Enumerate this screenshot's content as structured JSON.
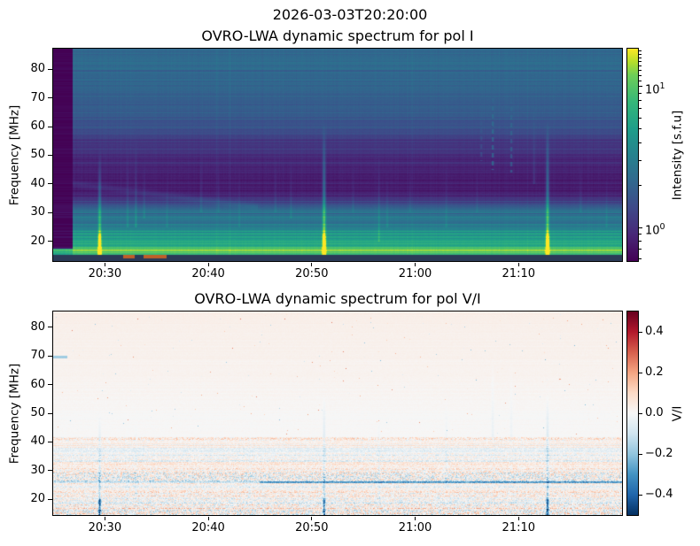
{
  "figure": {
    "title": "2026-03-03T20:20:00"
  },
  "chart_data": [
    {
      "type": "heatmap",
      "subtype": "radio_dynamic_spectrum",
      "title": "OVRO-LWA dynamic spectrum for pol I",
      "ylabel": "Frequency [MHz]",
      "x_axis": {
        "start_label": "20:25",
        "end_label": "21:20",
        "start_min": 25.0,
        "end_min": 80.0,
        "ticks": [
          {
            "label": "20:30",
            "min": 30
          },
          {
            "label": "20:40",
            "min": 40
          },
          {
            "label": "20:50",
            "min": 50
          },
          {
            "label": "21:00",
            "min": 60
          },
          {
            "label": "21:10",
            "min": 70
          }
        ]
      },
      "y_axis": {
        "min_mhz": 13.2,
        "max_mhz": 87.1,
        "ticks": [
          20,
          30,
          40,
          50,
          60,
          70,
          80
        ]
      },
      "colorbar": {
        "label": "Intensity [s.f.u]",
        "cmap": "viridis",
        "scale": "log",
        "vmin": 0.58,
        "vmax": 18.6,
        "major_ticks": [
          {
            "label": "10^1",
            "value": 10
          },
          {
            "label": "10^0",
            "value": 1
          }
        ],
        "minor_tick_values": [
          0.6,
          0.7,
          0.8,
          0.9,
          2,
          3,
          4,
          5,
          6,
          7,
          8,
          9,
          11,
          12,
          13,
          14,
          15,
          16,
          17,
          18
        ]
      },
      "background_spectrum_sfu": [
        [
          87,
          2.3
        ],
        [
          80,
          2.2
        ],
        [
          72,
          2.0
        ],
        [
          65,
          1.75
        ],
        [
          60,
          1.55
        ],
        [
          55,
          1.15
        ],
        [
          50,
          0.95
        ],
        [
          46,
          0.85
        ],
        [
          42,
          0.78
        ],
        [
          38,
          0.78
        ],
        [
          35,
          0.95
        ],
        [
          33.5,
          1.25
        ],
        [
          32,
          1.5
        ],
        [
          30.5,
          2.3
        ],
        [
          29.5,
          2.0
        ],
        [
          28.5,
          2.5
        ],
        [
          27.5,
          3.1
        ],
        [
          26.5,
          2.4
        ],
        [
          25.5,
          3.6
        ],
        [
          24.5,
          3.0
        ],
        [
          23.5,
          4.2
        ],
        [
          22.5,
          4.9
        ],
        [
          21.5,
          4.3
        ],
        [
          20.5,
          5.6
        ],
        [
          19.8,
          7.0
        ],
        [
          19.0,
          5.8
        ],
        [
          18.3,
          6.3
        ],
        [
          17.6,
          8.0
        ],
        [
          17.0,
          13.5
        ],
        [
          16.4,
          11.0
        ],
        [
          15.9,
          8.5
        ],
        [
          15.4,
          7.5
        ]
      ],
      "radio_bursts": [
        {
          "time": "20:29.5",
          "t": 29.5,
          "f_lo": 13.2,
          "f_hi": 52,
          "amp": 3.5,
          "sig": 0.13,
          "core": true
        },
        {
          "time": "20:51.2",
          "t": 51.2,
          "f_lo": 13.2,
          "f_hi": 62,
          "amp": 4.5,
          "sig": 0.13,
          "core": true
        },
        {
          "time": "21:12.8",
          "t": 72.8,
          "f_lo": 13.2,
          "f_hi": 63,
          "amp": 4.5,
          "sig": 0.13,
          "core": true
        }
      ],
      "weak_streaks": [
        {
          "t": 32.2,
          "f_lo": 25,
          "f_hi": 56,
          "amp": 0.5
        },
        {
          "t": 33.0,
          "f_lo": 25,
          "f_hi": 58,
          "amp": 0.7
        },
        {
          "t": 33.8,
          "f_lo": 28,
          "f_hi": 50,
          "amp": 0.4
        },
        {
          "t": 36.0,
          "f_lo": 25,
          "f_hi": 45,
          "amp": 0.3
        },
        {
          "t": 39.3,
          "f_lo": 30,
          "f_hi": 55,
          "amp": 0.35
        },
        {
          "t": 41.0,
          "f_lo": 30,
          "f_hi": 50,
          "amp": 0.25
        },
        {
          "t": 43.0,
          "f_lo": 25,
          "f_hi": 50,
          "amp": 0.3
        },
        {
          "t": 46.5,
          "f_lo": 30,
          "f_hi": 52,
          "amp": 0.3
        },
        {
          "t": 48.0,
          "f_lo": 28,
          "f_hi": 52,
          "amp": 0.35
        },
        {
          "t": 54.0,
          "f_lo": 30,
          "f_hi": 50,
          "amp": 0.25
        },
        {
          "t": 56.5,
          "f_lo": 20,
          "f_hi": 55,
          "amp": 0.6
        },
        {
          "t": 57.3,
          "f_lo": 25,
          "f_hi": 45,
          "amp": 0.35
        },
        {
          "t": 59.5,
          "f_lo": 30,
          "f_hi": 48,
          "amp": 0.25
        },
        {
          "t": 63.0,
          "f_lo": 25,
          "f_hi": 50,
          "amp": 0.3
        },
        {
          "t": 66.0,
          "f_lo": 30,
          "f_hi": 50,
          "amp": 0.25
        },
        {
          "t": 71.5,
          "f_lo": 40,
          "f_hi": 70,
          "amp": 0.4
        },
        {
          "t": 76.0,
          "f_lo": 30,
          "f_hi": 50,
          "amp": 0.3
        },
        {
          "t": 78.5,
          "f_lo": 25,
          "f_hi": 45,
          "amp": 0.3
        }
      ],
      "dotted_streaks": [
        {
          "t": 67.5,
          "f_lo": 45,
          "f_hi": 73,
          "amp": 1.5
        },
        {
          "t": 69.3,
          "f_lo": 44,
          "f_hi": 72,
          "amp": 1.0
        },
        {
          "t": 66.4,
          "f_lo": 48,
          "f_hi": 66,
          "amp": 0.5
        }
      ],
      "drift_feature": {
        "t_start": 26.5,
        "t_end": 46,
        "f_start": 40,
        "drift_mhz_per_min": -0.45,
        "amp": 0.22
      },
      "data_gap_min": [
        25.0,
        26.9
      ],
      "flagged_band_below_mhz": 15.35,
      "flagged_strip_color": "#2b3a57",
      "flagged_rfi_color": "#c05f28",
      "flagged_rfi_segments_min": [
        [
          31.8,
          32.9
        ],
        [
          33.7,
          36.0
        ]
      ],
      "bright_lines_mhz": [
        47.3,
        33.8
      ],
      "dark_lines_mhz": [
        84.8,
        79.5,
        62,
        41.3
      ],
      "noise": {
        "row_sigma_hi": 0.03,
        "row_sigma_lo": 0.06,
        "col_sigma": 0.009,
        "pixel_sigma": 0.025,
        "seed": 11
      }
    },
    {
      "type": "heatmap",
      "subtype": "radio_dynamic_spectrum",
      "title": "OVRO-LWA dynamic spectrum for pol V/I",
      "ylabel": "Frequency [MHz]",
      "x_axis": {
        "start_label": "20:25",
        "end_label": "21:20",
        "start_min": 25.0,
        "end_min": 80.0,
        "ticks": [
          {
            "label": "20:30",
            "min": 30
          },
          {
            "label": "20:40",
            "min": 40
          },
          {
            "label": "20:50",
            "min": 50
          },
          {
            "label": "21:00",
            "min": 60
          },
          {
            "label": "21:10",
            "min": 70
          }
        ]
      },
      "y_axis": {
        "min_mhz": 14.5,
        "max_mhz": 85.5,
        "ticks": [
          20,
          30,
          40,
          50,
          60,
          70,
          80
        ]
      },
      "colorbar": {
        "label": "V/I",
        "cmap": "RdBu_r",
        "scale": "linear",
        "vmin": -0.5,
        "vmax": 0.5,
        "major_ticks": [
          {
            "label": "0.4",
            "value": 0.4
          },
          {
            "label": "0.2",
            "value": 0.2
          },
          {
            "label": "0.0",
            "value": 0.0
          },
          {
            "label": "−0.2",
            "value": -0.2
          },
          {
            "label": "−0.4",
            "value": -0.4
          }
        ]
      },
      "background_tint": {
        "f_ref": 50,
        "tint_at_85": 0.028,
        "tint_below": 0.002
      },
      "noise_bands": [
        {
          "f1": 40.3,
          "f2": 41.6,
          "amp": 0.1,
          "bias": 0.03
        },
        {
          "f1": 38.5,
          "f2": 40.3,
          "amp": 0.04,
          "bias": 0.0
        },
        {
          "f1": 36.2,
          "f2": 38.5,
          "amp": 0.05,
          "bias": -0.01
        },
        {
          "f1": 33.0,
          "f2": 36.2,
          "amp": 0.07,
          "bias": -0.02
        },
        {
          "f1": 31.0,
          "f2": 33.0,
          "amp": 0.06,
          "bias": 0.02
        },
        {
          "f1": 29.3,
          "f2": 31.0,
          "amp": 0.1,
          "bias": 0.03
        },
        {
          "f1": 26.3,
          "f2": 29.3,
          "amp": 0.16,
          "bias": -0.04
        },
        {
          "f1": 25.6,
          "f2": 26.3,
          "amp": 0.08,
          "bias": -0.1,
          "bias_right": -0.28,
          "t_split": 45
        },
        {
          "f1": 23.0,
          "f2": 25.6,
          "amp": 0.08,
          "bias": -0.01
        },
        {
          "f1": 21.0,
          "f2": 23.0,
          "amp": 0.1,
          "bias": 0.03
        },
        {
          "f1": 18.5,
          "f2": 21.0,
          "amp": 0.11,
          "bias": -0.02
        },
        {
          "f1": 16.5,
          "f2": 18.5,
          "amp": 0.13,
          "bias": 0.01
        },
        {
          "f1": 14.5,
          "f2": 16.5,
          "amp": 0.17,
          "bias": -0.03
        }
      ],
      "circular_pol_streaks": [
        {
          "t": 29.5,
          "f_lo": 14.5,
          "f_hi": 50,
          "amp": -0.2,
          "core": -0.22
        },
        {
          "t": 32.2,
          "f_lo": 20,
          "f_hi": 45,
          "amp": -0.05
        },
        {
          "t": 33.0,
          "f_lo": 20,
          "f_hi": 48,
          "amp": -0.07
        },
        {
          "t": 44.0,
          "f_lo": 20,
          "f_hi": 42,
          "amp": -0.05
        },
        {
          "t": 51.2,
          "f_lo": 14.5,
          "f_hi": 57,
          "amp": -0.18,
          "core": -0.18
        },
        {
          "t": 56.5,
          "f_lo": 20,
          "f_hi": 50,
          "amp": -0.07
        },
        {
          "t": 63.0,
          "f_lo": 25,
          "f_hi": 55,
          "amp": -0.05
        },
        {
          "t": 67.5,
          "f_lo": 40,
          "f_hi": 70,
          "amp": -0.04
        },
        {
          "t": 69.3,
          "f_lo": 40,
          "f_hi": 68,
          "amp": -0.03
        },
        {
          "t": 72.8,
          "f_lo": 14.5,
          "f_hi": 57,
          "amp": -0.22,
          "core": -0.22
        }
      ],
      "blue_dash_70mhz": {
        "t1": 25.0,
        "t2": 26.4,
        "f1": 69.2,
        "f2": 70.2,
        "value": -0.2
      },
      "noise": {
        "row_sigma": 0.035,
        "pixel_dots_prob": 0.0025,
        "seed": 99
      }
    }
  ]
}
